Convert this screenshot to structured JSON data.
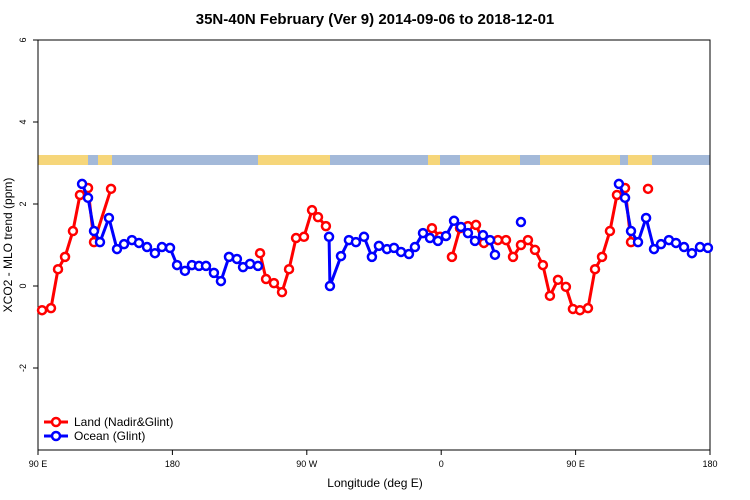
{
  "chart_data": {
    "type": "line",
    "title": "35N-40N February (Ver 9)   2014-09-06 to 2018-12-01",
    "x_label": "Longitude (deg E)",
    "y_label": "XCO2 - MLO trend (ppm)",
    "xlim": [
      90,
      540
    ],
    "xticks": [
      {
        "value": 90,
        "label": "90 E"
      },
      180,
      {
        "value": 270,
        "label": "90 W"
      },
      {
        "value": 360,
        "label": "0"
      },
      {
        "value": 450,
        "label": "90 E"
      },
      {
        "value": 540,
        "label": "180"
      }
    ],
    "ylim": [
      -4,
      6
    ],
    "yticks": [
      -2,
      0,
      2,
      4,
      6
    ],
    "legend": "bottom-left",
    "series": [
      {
        "name": "Land (Nadir&Glint)",
        "color": "#ff0000",
        "x": [
          92.7,
          98.7,
          103.4,
          108.1,
          113.4,
          118.1,
          123.5,
          127.5,
          138.9,
          null,
          238.7,
          242.7,
          248.0,
          253.4,
          258.1,
          262.8,
          268.1,
          273.5,
          277.5,
          282.8,
          null,
          353.8,
          359.2,
          null,
          367.2,
          372.6,
          377.9,
          383.3,
          388.6,
          null,
          398.0,
          403.4,
          408.1,
          413.4,
          418.1,
          422.8,
          428.1,
          432.8,
          438.2,
          443.5,
          448.2,
          452.9,
          458.3,
          463.0,
          467.7,
          473.0,
          477.7,
          483.1,
          487.1,
          null,
          498.5
        ],
        "values": [
          -0.59,
          -0.54,
          0.41,
          0.71,
          1.34,
          2.22,
          2.39,
          1.07,
          2.37,
          null,
          0.8,
          0.17,
          0.07,
          -0.15,
          0.41,
          1.17,
          1.2,
          1.85,
          1.68,
          1.46,
          null,
          1.41,
          1.2,
          null,
          0.71,
          1.41,
          1.46,
          1.49,
          1.05,
          null,
          1.12,
          1.12,
          0.71,
          1.0,
          1.12,
          0.88,
          0.51,
          -0.24,
          0.15,
          -0.02,
          -0.56,
          -0.59,
          -0.54,
          0.41,
          0.71,
          1.34,
          2.22,
          2.39,
          1.07,
          null,
          2.37
        ]
      },
      {
        "name": "Ocean (Glint)",
        "color": "#0000ff",
        "x": [
          119.5,
          123.5,
          127.5,
          131.5,
          137.5,
          142.9,
          147.6,
          152.9,
          157.6,
          163.0,
          168.3,
          173.0,
          178.4,
          183.1,
          188.4,
          193.1,
          197.8,
          202.5,
          207.8,
          212.5,
          217.9,
          223.2,
          227.3,
          232.0,
          237.3,
          null,
          284.9,
          285.5,
          292.9,
          298.2,
          302.9,
          308.3,
          313.6,
          318.3,
          323.7,
          328.4,
          333.1,
          338.4,
          342.4,
          347.8,
          352.5,
          357.8,
          363.2,
          368.6,
          373.2,
          377.9,
          382.6,
          388.0,
          392.7,
          396.0,
          null,
          413.4,
          null,
          479.0,
          483.1,
          487.1,
          491.8,
          497.2,
          502.5,
          507.2,
          512.5,
          517.2,
          522.6,
          527.9,
          533.3,
          538.6
        ],
        "values": [
          2.49,
          2.15,
          1.34,
          1.07,
          1.66,
          0.9,
          1.02,
          1.12,
          1.05,
          0.95,
          0.8,
          0.95,
          0.93,
          0.51,
          0.37,
          0.51,
          0.49,
          0.49,
          0.32,
          0.12,
          0.71,
          0.66,
          0.46,
          0.54,
          0.49,
          null,
          1.2,
          0.0,
          0.73,
          1.12,
          1.07,
          1.2,
          0.71,
          0.98,
          0.9,
          0.93,
          0.83,
          0.78,
          0.95,
          1.29,
          1.17,
          1.1,
          1.22,
          1.59,
          1.44,
          1.29,
          1.1,
          1.24,
          1.12,
          0.76,
          null,
          1.56,
          null,
          2.49,
          2.15,
          1.34,
          1.07,
          1.66,
          0.9,
          1.02,
          1.12,
          1.05,
          0.95,
          0.8,
          0.95,
          0.93
        ]
      }
    ]
  }
}
